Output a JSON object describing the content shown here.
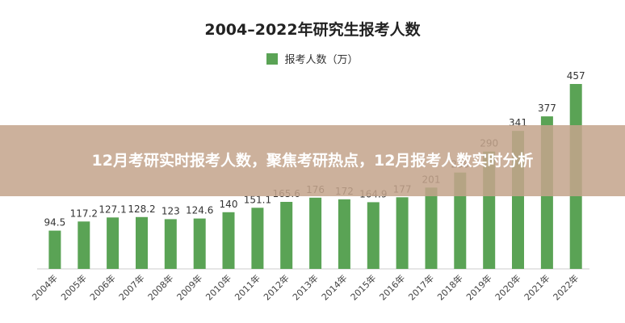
{
  "chart_data": {
    "type": "bar",
    "title": "2004–2022年研究生报考人数",
    "categories": [
      "2004年",
      "2005年",
      "2006年",
      "2007年",
      "2008年",
      "2009年",
      "2010年",
      "2011年",
      "2012年",
      "2013年",
      "2014年",
      "2015年",
      "2016年",
      "2017年",
      "2018年",
      "2019年",
      "2020年",
      "2021年",
      "2022年"
    ],
    "series": [
      {
        "name": "报考人数（万）",
        "values": [
          94.5,
          117.2,
          127.1,
          128.2,
          123,
          124.6,
          140,
          151.1,
          165.6,
          176,
          172,
          164.9,
          177,
          201,
          238,
          290,
          341,
          377,
          457
        ],
        "labels": [
          "94.5",
          "117.2",
          "127.1",
          "128.2",
          "123",
          "124.6",
          "140",
          "151.1",
          "165.6",
          "176",
          "172",
          "164.9",
          "177",
          "201",
          "238",
          "290",
          "341",
          "377",
          "457"
        ]
      }
    ],
    "ylim": [
      0,
      457
    ],
    "grid": false,
    "legend": "top-center",
    "bar_color": "#5aa355"
  },
  "overlay": {
    "text": "12月考研实时报考人数，聚焦考研热点，12月报考人数实时分析"
  }
}
